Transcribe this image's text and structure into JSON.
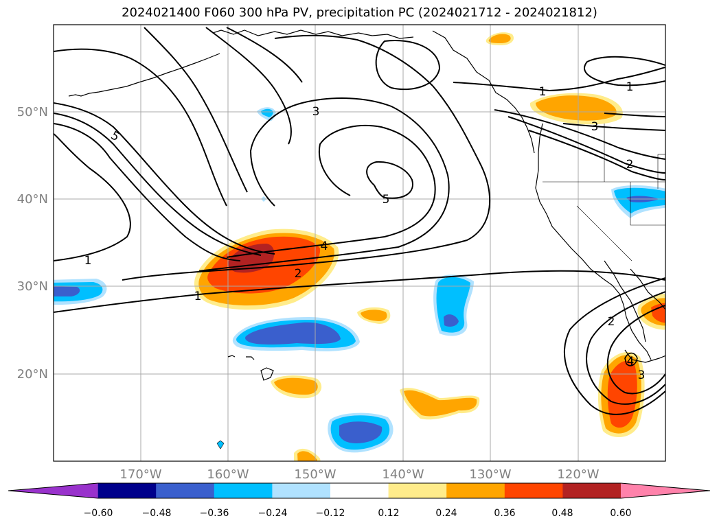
{
  "title": "2024021400 F060 300 hPa PV, precipitation PC (2024021712 - 2024021812)",
  "map": {
    "latitude_labels": [
      "50°N",
      "40°N",
      "30°N",
      "20°N"
    ],
    "longitude_labels": [
      "170°W",
      "160°W",
      "150°W",
      "140°W",
      "130°W",
      "120°W"
    ],
    "gridlines": true,
    "pv_contour_labels": [
      "1",
      "1",
      "1",
      "1",
      "2",
      "2",
      "2",
      "3",
      "3",
      "3",
      "4",
      "4",
      "5",
      "5"
    ]
  },
  "colorbar": {
    "tick_labels": [
      "−0.60",
      "−0.48",
      "−0.36",
      "−0.24",
      "−0.12",
      "0.12",
      "0.24",
      "0.36",
      "0.48",
      "0.60"
    ],
    "colors": [
      "#9932cc",
      "#00008b",
      "#3a5fcd",
      "#00bfff",
      "#b0e2ff",
      "#ffffff",
      "#ffec8b",
      "#ffa500",
      "#ff4500",
      "#b22222",
      "#ff82ab"
    ],
    "extend": "both"
  }
}
